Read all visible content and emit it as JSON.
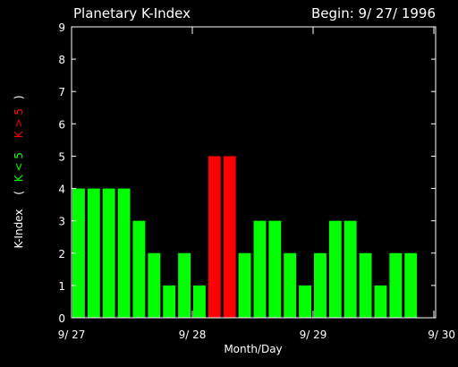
{
  "chart_data": {
    "type": "bar",
    "title": "Planetary K-Index",
    "begin_label": "Begin: 9/ 27/ 1996",
    "xlabel": "Month/Day",
    "ylabel": {
      "main": "K-Index",
      "open": "(",
      "low": "K < 5",
      "high": "K > 5",
      "close": ")"
    },
    "ylim": [
      0,
      9
    ],
    "yticks": [
      "0",
      "1",
      "2",
      "3",
      "4",
      "5",
      "6",
      "7",
      "8",
      "9"
    ],
    "xticks": [
      "9/ 27",
      "9/ 28",
      "9/ 29",
      "9/ 30"
    ],
    "bars_per_day": 8,
    "values": [
      4,
      4,
      4,
      4,
      3,
      2,
      1,
      2,
      1,
      5,
      5,
      2,
      3,
      3,
      2,
      1,
      2,
      3,
      3,
      2,
      1,
      2,
      2
    ],
    "threshold": 5,
    "colors": {
      "low": "#00ff00",
      "high": "#ff0000",
      "axis": "#ffffff",
      "background": "#000000"
    }
  }
}
